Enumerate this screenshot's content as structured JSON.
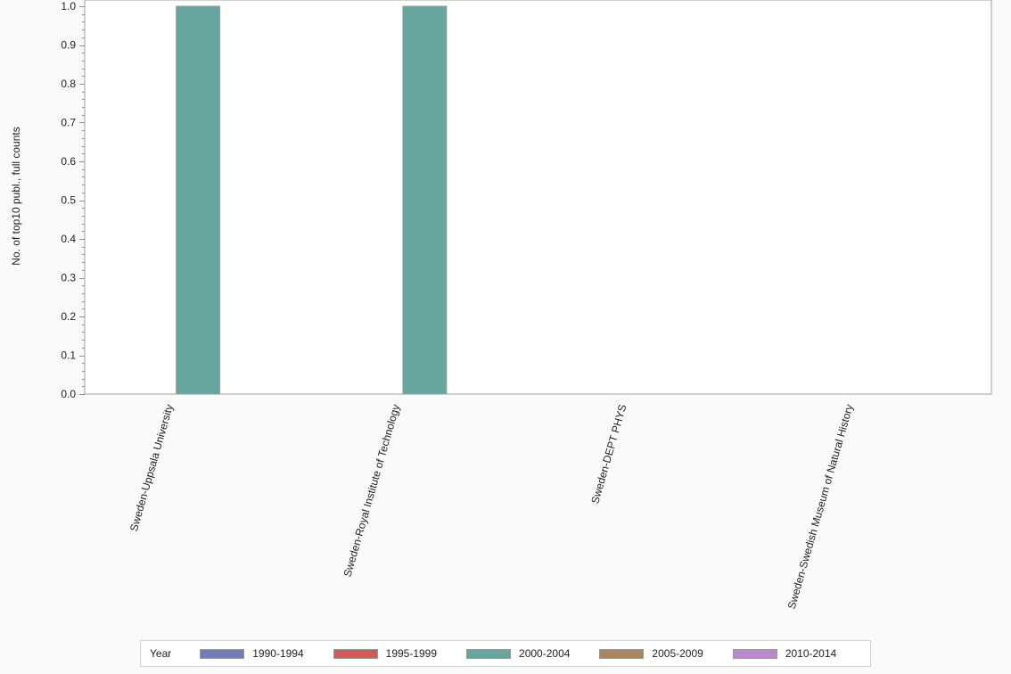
{
  "chart_data": {
    "type": "bar",
    "title": "",
    "xlabel": "",
    "ylabel": "No. of top10 publ., full counts",
    "ylim": [
      0,
      1.0
    ],
    "yticks": [
      "0.0",
      "0.1",
      "0.2",
      "0.3",
      "0.4",
      "0.5",
      "0.6",
      "0.7",
      "0.8",
      "0.9",
      "1.0"
    ],
    "grid": false,
    "legend_position": "bottom",
    "legend_title": "Year",
    "categories": [
      "Sweden-Uppsala University",
      "Sweden-Royal Institute of Technology",
      "Sweden-DEPT PHYS",
      "Sweden-Swedish Museum of Natural History"
    ],
    "series": [
      {
        "name": "1990-1994",
        "color": "#6f7fb5",
        "values": [
          0,
          0,
          0,
          0
        ]
      },
      {
        "name": "1995-1999",
        "color": "#d05b5b",
        "values": [
          0,
          0,
          0,
          0
        ]
      },
      {
        "name": "2000-2004",
        "color": "#66a69f",
        "values": [
          1,
          1,
          0,
          0
        ]
      },
      {
        "name": "2005-2009",
        "color": "#a88660",
        "values": [
          0,
          0,
          0,
          0
        ]
      },
      {
        "name": "2010-2014",
        "color": "#b88ccc",
        "values": [
          0,
          0,
          0,
          0
        ]
      }
    ]
  }
}
